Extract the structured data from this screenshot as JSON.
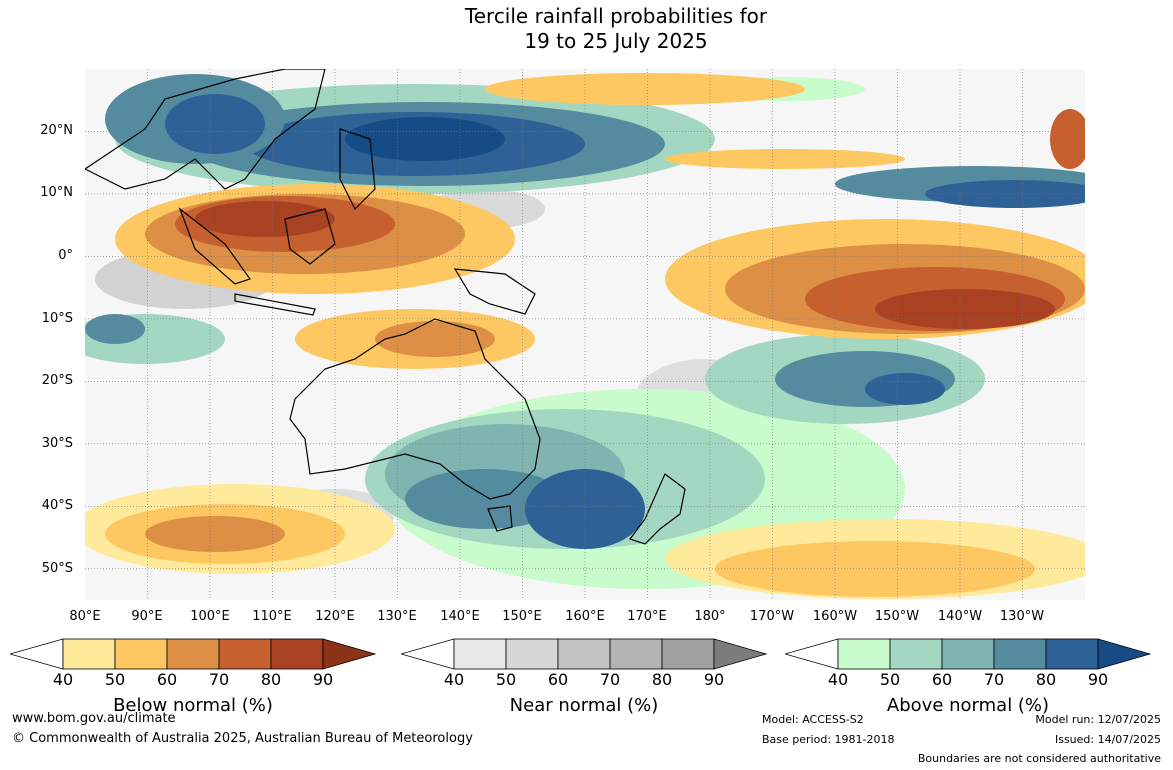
{
  "title": {
    "line1": "Tercile rainfall probabilities for",
    "line2": "19 to 25 July 2025"
  },
  "map": {
    "lat_labels": [
      "20°N",
      "10°N",
      "0°",
      "10°S",
      "20°S",
      "30°S",
      "40°S",
      "50°S"
    ],
    "lon_labels": [
      "80°E",
      "90°E",
      "100°E",
      "110°E",
      "120°E",
      "130°E",
      "140°E",
      "150°E",
      "160°E",
      "170°E",
      "180°",
      "170°W",
      "160°W",
      "150°W",
      "140°W",
      "130°W"
    ],
    "lat_range": [
      -55,
      30
    ],
    "lon_range": [
      80,
      240
    ],
    "gridlines": true
  },
  "colorbars": [
    {
      "title": "Below normal (%)",
      "ticks": [
        "40",
        "50",
        "60",
        "70",
        "80",
        "90"
      ],
      "colors": [
        "#ffffff",
        "#feea9a",
        "#fdc862",
        "#dd8f45",
        "#c6602f",
        "#a84222",
        "#8c3318"
      ]
    },
    {
      "title": "Near normal (%)",
      "ticks": [
        "40",
        "50",
        "60",
        "70",
        "80",
        "90"
      ],
      "colors": [
        "#ffffff",
        "#e8e8e8",
        "#d6d6d6",
        "#c4c4c4",
        "#b3b3b3",
        "#a0a0a0",
        "#7c7c7c"
      ]
    },
    {
      "title": "Above normal (%)",
      "ticks": [
        "40",
        "50",
        "60",
        "70",
        "80",
        "90"
      ],
      "colors": [
        "#ffffff",
        "#c8fccc",
        "#a3d7c2",
        "#7fb4b1",
        "#548b9e",
        "#2e6196",
        "#164c85"
      ]
    }
  ],
  "footer": {
    "url": "www.bom.gov.au/climate",
    "copyright": "© Commonwealth of Australia 2025, Australian Bureau of Meteorology",
    "model": "Model: ACCESS-S2",
    "base_period": "Base period: 1981-2018",
    "model_run": "Model run: 12/07/2025",
    "issued": "Issued: 14/07/2025",
    "disclaimer": "Boundaries are not considered authoritative"
  }
}
